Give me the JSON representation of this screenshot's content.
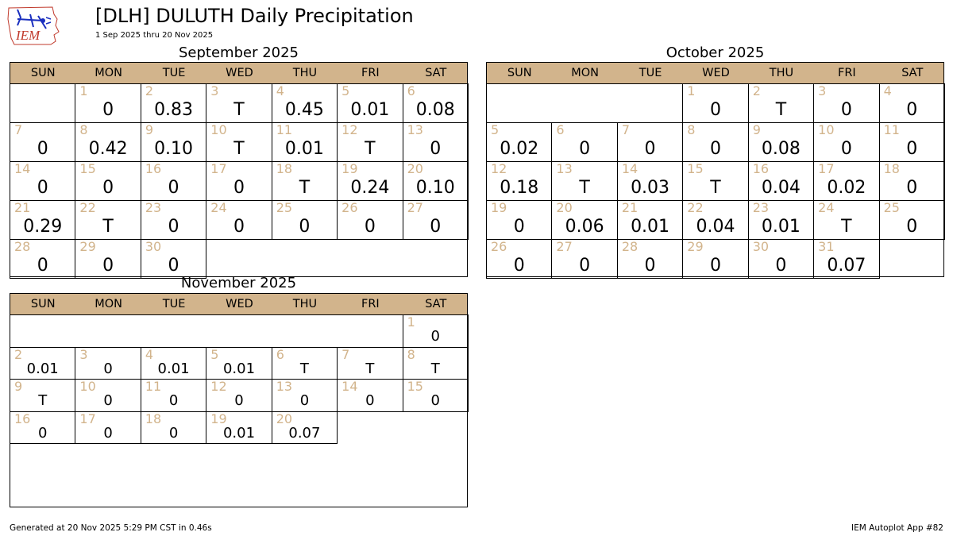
{
  "header": {
    "title": "[DLH] DULUTH Daily Precipitation",
    "subtitle": "1 Sep 2025 thru 20 Nov 2025",
    "logo_text": "IEM"
  },
  "footer": {
    "generated": "Generated at 20 Nov 2025 5:29 PM CST in 0.46s",
    "app": "IEM Autoplot App #82"
  },
  "colors": {
    "header_fill": "#d2b48c",
    "day_number": "#d2b48c",
    "grid": "#000000"
  },
  "chart_data": {
    "type": "table",
    "weekdays": [
      "SUN",
      "MON",
      "TUE",
      "WED",
      "THU",
      "FRI",
      "SAT"
    ],
    "months": [
      {
        "title": "September 2025",
        "start_weekday": 1,
        "days": 30,
        "values": [
          "0",
          "0.83",
          "T",
          "0.45",
          "0.01",
          "0.08",
          "0",
          "0.42",
          "0.10",
          "T",
          "0.01",
          "T",
          "0",
          "0",
          "0",
          "0",
          "0",
          "T",
          "0.24",
          "0.10",
          "0.29",
          "T",
          "0",
          "0",
          "0",
          "0",
          "0",
          "0",
          "0",
          "0"
        ]
      },
      {
        "title": "October 2025",
        "start_weekday": 3,
        "days": 31,
        "values": [
          "0",
          "T",
          "0",
          "0",
          "0.02",
          "0",
          "0",
          "0",
          "0.08",
          "0",
          "0",
          "0.18",
          "T",
          "0.03",
          "T",
          "0.04",
          "0.02",
          "0",
          "0",
          "0.06",
          "0.01",
          "0.04",
          "0.01",
          "T",
          "0",
          "0",
          "0",
          "0",
          "0",
          "0",
          "0.07"
        ]
      },
      {
        "title": "November 2025",
        "start_weekday": 6,
        "days": 20,
        "values": [
          "0",
          "0.01",
          "0",
          "0.01",
          "0.01",
          "T",
          "T",
          "T",
          "T",
          "0",
          "0",
          "0",
          "0",
          "0",
          "0",
          "0",
          "0",
          "0",
          "0.01",
          "0.07"
        ]
      }
    ]
  }
}
